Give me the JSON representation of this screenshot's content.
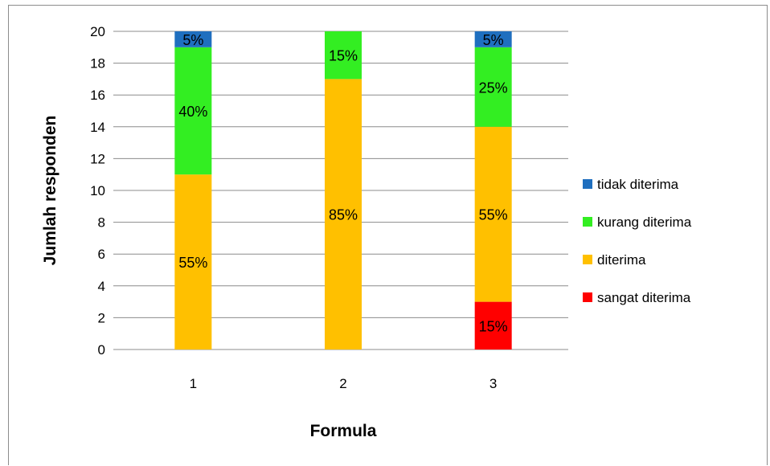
{
  "chart_data": {
    "type": "bar",
    "stacked": true,
    "title": "",
    "xlabel": "Formula",
    "ylabel": "Jumlah responden",
    "ylim": [
      0,
      20
    ],
    "yticks": [
      0,
      2,
      4,
      6,
      8,
      10,
      12,
      14,
      16,
      18,
      20
    ],
    "categories": [
      "1",
      "2",
      "3"
    ],
    "grid": true,
    "legend_position": "right",
    "series": [
      {
        "name": "sangat diterima",
        "color": "#ff0000",
        "values": [
          0,
          0,
          3
        ],
        "labels": [
          "",
          "",
          "15%"
        ]
      },
      {
        "name": "diterima",
        "color": "#ffc000",
        "values": [
          11,
          17,
          11
        ],
        "labels": [
          "55%",
          "85%",
          "55%"
        ]
      },
      {
        "name": "kurang diterima",
        "color": "#33ee22",
        "values": [
          8,
          3,
          5
        ],
        "labels": [
          "40%",
          "15%",
          "25%"
        ]
      },
      {
        "name": "tidak diterima",
        "color": "#1f6fbf",
        "values": [
          1,
          0,
          1
        ],
        "labels": [
          "5%",
          "",
          "5%"
        ]
      }
    ]
  }
}
